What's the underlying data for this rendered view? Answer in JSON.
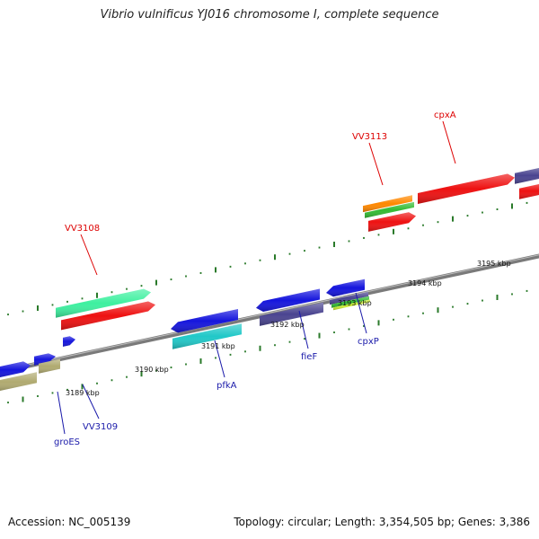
{
  "title": "Vibrio vulnificus YJ016 chromosome I, complete sequence",
  "footer": {
    "accession": "Accession: NC_005139",
    "topology": "Topology: circular; Length: 3,354,505 bp; Genes: 3,386"
  },
  "colors": {
    "label_top": "#dd0000",
    "label_bottom": "#1a1aaa",
    "backbone": "#7a7a7a",
    "tick": "#2a7a2a",
    "red": "#ee1111",
    "blue": "#1515dd",
    "navy": "#4a4490",
    "cyan": "#20c8c8",
    "mint": "#3ef0a0",
    "olive": "#b0aa70",
    "orange": "#ff8800",
    "green": "#33bb33",
    "lime": "#ccee33"
  },
  "ticks": [
    {
      "label": "3189 kbp"
    },
    {
      "label": "3190 kbp"
    },
    {
      "label": "3191 kbp"
    },
    {
      "label": "3192 kbp"
    },
    {
      "label": "3193 kbp"
    },
    {
      "label": "3194 kbp"
    },
    {
      "label": "3195 kbp"
    }
  ],
  "gene_labels_top": [
    {
      "name": "VV3108"
    },
    {
      "name": "VV3113"
    },
    {
      "name": "cpxA"
    }
  ],
  "gene_labels_bottom": [
    {
      "name": "groES"
    },
    {
      "name": "VV3109"
    },
    {
      "name": "pfkA"
    },
    {
      "name": "fieF"
    },
    {
      "name": "cpxP"
    }
  ]
}
